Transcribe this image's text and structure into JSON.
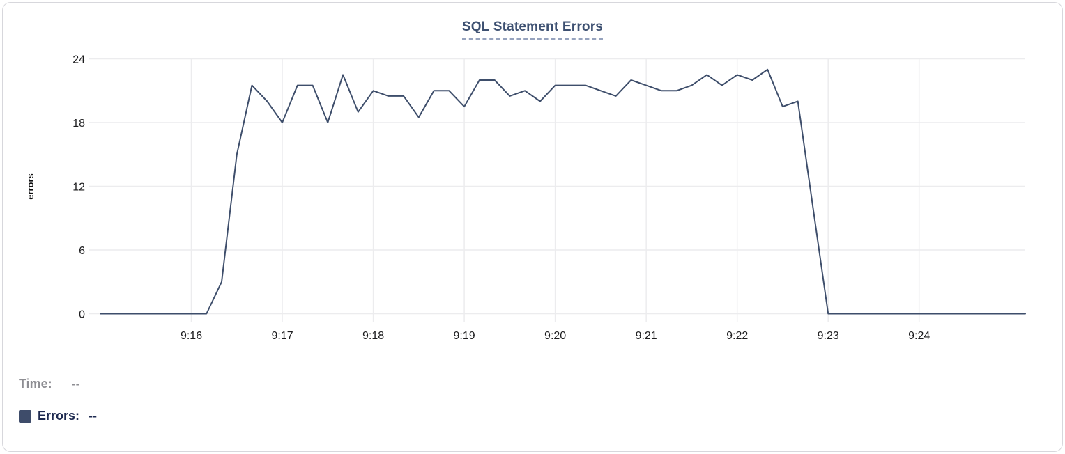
{
  "chart_data": {
    "type": "line",
    "title": "SQL Statement Errors",
    "title_color": "#3d5071",
    "ylabel": "errors",
    "xlabel": "",
    "series_name": "Errors",
    "line_color": "#3e4e6b",
    "grid": true,
    "legend_position": "bottom-left",
    "ylim": [
      0,
      24
    ],
    "y_ticks": [
      0,
      6,
      12,
      18,
      24
    ],
    "x_tick_labels": [
      "9:16",
      "9:17",
      "9:18",
      "9:19",
      "9:20",
      "9:21",
      "9:22",
      "9:23",
      "9:24"
    ],
    "x": [
      "9:15:00",
      "9:15:10",
      "9:15:20",
      "9:15:30",
      "9:15:40",
      "9:15:50",
      "9:16:00",
      "9:16:10",
      "9:16:20",
      "9:16:30",
      "9:16:40",
      "9:16:50",
      "9:17:00",
      "9:17:10",
      "9:17:20",
      "9:17:30",
      "9:17:40",
      "9:17:50",
      "9:18:00",
      "9:18:10",
      "9:18:20",
      "9:18:30",
      "9:18:40",
      "9:18:50",
      "9:19:00",
      "9:19:10",
      "9:19:20",
      "9:19:30",
      "9:19:40",
      "9:19:50",
      "9:20:00",
      "9:20:10",
      "9:20:20",
      "9:20:30",
      "9:20:40",
      "9:20:50",
      "9:21:00",
      "9:21:10",
      "9:21:20",
      "9:21:30",
      "9:21:40",
      "9:21:50",
      "9:22:00",
      "9:22:10",
      "9:22:20",
      "9:22:30",
      "9:22:40",
      "9:22:50",
      "9:23:00",
      "9:23:10",
      "9:23:20",
      "9:23:30",
      "9:23:40",
      "9:23:50",
      "9:24:00",
      "9:24:10",
      "9:24:20",
      "9:24:30",
      "9:24:40",
      "9:24:50",
      "9:25:00",
      "9:25:10"
    ],
    "values": [
      0,
      0,
      0,
      0,
      0,
      0,
      0,
      0,
      3,
      15,
      21.5,
      20,
      18,
      21.5,
      21.5,
      18,
      22.5,
      19,
      21,
      20.5,
      20.5,
      18.5,
      21,
      21,
      19.5,
      22,
      22,
      20.5,
      21,
      20,
      21.5,
      21.5,
      21.5,
      21,
      20.5,
      22,
      21.5,
      21,
      21,
      21.5,
      22.5,
      21.5,
      22.5,
      22,
      23,
      19.5,
      20,
      10,
      0,
      0,
      0,
      0,
      0,
      0,
      0,
      0,
      0,
      0,
      0,
      0,
      0,
      0
    ]
  },
  "legend": {
    "time_label": "Time:",
    "time_value": "--",
    "time_color": "#8e8e93",
    "errors_label": "Errors:",
    "errors_value": "--",
    "errors_color": "#1e2a50",
    "swatch_color": "#3e4c6a"
  },
  "panel": {
    "border_color": "#d7d7dc"
  }
}
